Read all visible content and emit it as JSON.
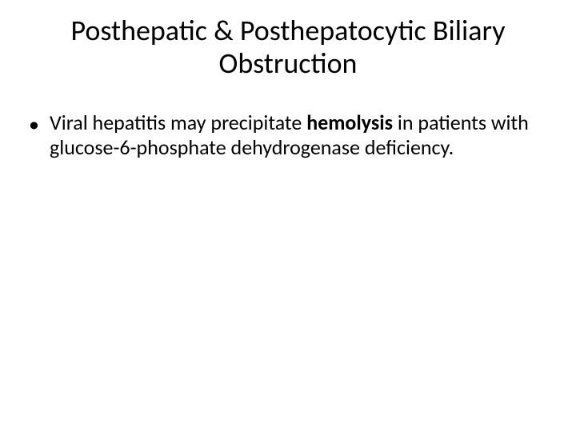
{
  "slide": {
    "title_line1": "Posthepatic & Posthepatocytic Biliary",
    "title_line2": "Obstruction",
    "bullets": [
      {
        "pre": "Viral hepatitis may precipitate ",
        "bold": "hemolysis",
        "post": " in patients with glucose-6-phosphate dehydrogenase deficiency."
      }
    ]
  },
  "style": {
    "background_color": "#ffffff",
    "text_color": "#000000",
    "title_fontsize": 36,
    "body_fontsize": 26,
    "font_family": "Calibri",
    "bullet_glyph": "•"
  }
}
